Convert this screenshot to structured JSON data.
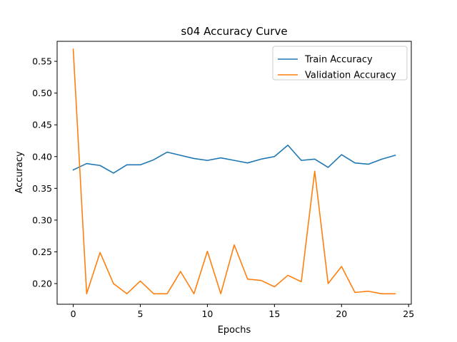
{
  "chart_data": {
    "type": "line",
    "title": "s04 Accuracy Curve",
    "xlabel": "Epochs",
    "ylabel": "Accuracy",
    "xlim": [
      -1.2,
      25.2
    ],
    "ylim": [
      0.1675,
      0.5815
    ],
    "x_ticks": [
      0,
      5,
      10,
      15,
      20,
      25
    ],
    "y_ticks": [
      0.2,
      0.25,
      0.3,
      0.35,
      0.4,
      0.45,
      0.5,
      0.55
    ],
    "grid": false,
    "legend_position": "upper right",
    "x": [
      0,
      1,
      2,
      3,
      4,
      5,
      6,
      7,
      8,
      9,
      10,
      11,
      12,
      13,
      14,
      15,
      16,
      17,
      18,
      19,
      20,
      21,
      22,
      23,
      24
    ],
    "series": [
      {
        "name": "Train Accuracy",
        "color": "#1f77b4",
        "values": [
          0.379,
          0.389,
          0.386,
          0.374,
          0.387,
          0.387,
          0.395,
          0.407,
          0.402,
          0.397,
          0.394,
          0.398,
          0.394,
          0.39,
          0.396,
          0.4,
          0.418,
          0.394,
          0.396,
          0.383,
          0.403,
          0.39,
          0.388,
          0.396,
          0.402
        ]
      },
      {
        "name": "Validation Accuracy",
        "color": "#ff7f0e",
        "values": [
          0.569,
          0.184,
          0.249,
          0.2,
          0.184,
          0.204,
          0.184,
          0.184,
          0.219,
          0.184,
          0.251,
          0.184,
          0.261,
          0.207,
          0.205,
          0.195,
          0.213,
          0.203,
          0.377,
          0.2,
          0.227,
          0.186,
          0.188,
          0.184,
          0.184
        ]
      }
    ]
  }
}
